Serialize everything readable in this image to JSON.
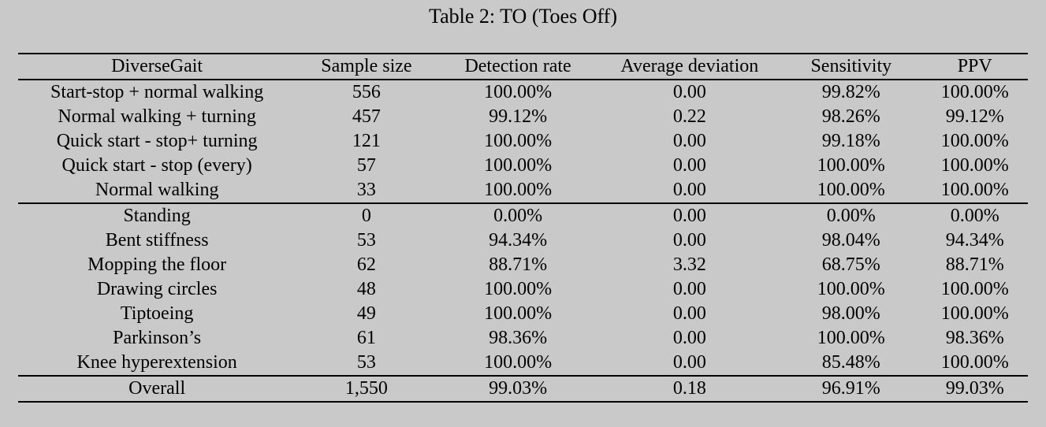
{
  "page": {
    "background_color": "#c9c9c9",
    "text_color": "#000000",
    "rule_color": "#000000"
  },
  "caption": "Table 2: TO (Toes Off)",
  "chart_data": {
    "type": "table",
    "title": "Table 2: TO (Toes Off)",
    "columns": [
      "DiverseGait",
      "Sample size",
      "Detection rate",
      "Average deviation",
      "Sensitivity",
      "PPV"
    ],
    "sections": [
      {
        "name": "gait-scenarios",
        "rows": [
          [
            "Start-stop + normal walking",
            "556",
            "100.00%",
            "0.00",
            "99.82%",
            "100.00%"
          ],
          [
            "Normal walking + turning",
            "457",
            "99.12%",
            "0.22",
            "98.26%",
            "99.12%"
          ],
          [
            "Quick start - stop+ turning",
            "121",
            "100.00%",
            "0.00",
            "99.18%",
            "100.00%"
          ],
          [
            "Quick start - stop (every)",
            "57",
            "100.00%",
            "0.00",
            "100.00%",
            "100.00%"
          ],
          [
            "Normal walking",
            "33",
            "100.00%",
            "0.00",
            "100.00%",
            "100.00%"
          ]
        ]
      },
      {
        "name": "other-activities",
        "rows": [
          [
            "Standing",
            "0",
            "0.00%",
            "0.00",
            "0.00%",
            "0.00%"
          ],
          [
            "Bent stiffness",
            "53",
            "94.34%",
            "0.00",
            "98.04%",
            "94.34%"
          ],
          [
            "Mopping the floor",
            "62",
            "88.71%",
            "3.32",
            "68.75%",
            "88.71%"
          ],
          [
            "Drawing circles",
            "48",
            "100.00%",
            "0.00",
            "100.00%",
            "100.00%"
          ],
          [
            "Tiptoeing",
            "49",
            "100.00%",
            "0.00",
            "98.00%",
            "100.00%"
          ],
          [
            "Parkinson’s",
            "61",
            "98.36%",
            "0.00",
            "100.00%",
            "98.36%"
          ],
          [
            "Knee hyperextension",
            "53",
            "100.00%",
            "0.00",
            "85.48%",
            "100.00%"
          ]
        ]
      },
      {
        "name": "overall",
        "rows": [
          [
            "Overall",
            "1,550",
            "99.03%",
            "0.18",
            "96.91%",
            "99.03%"
          ]
        ]
      }
    ]
  }
}
